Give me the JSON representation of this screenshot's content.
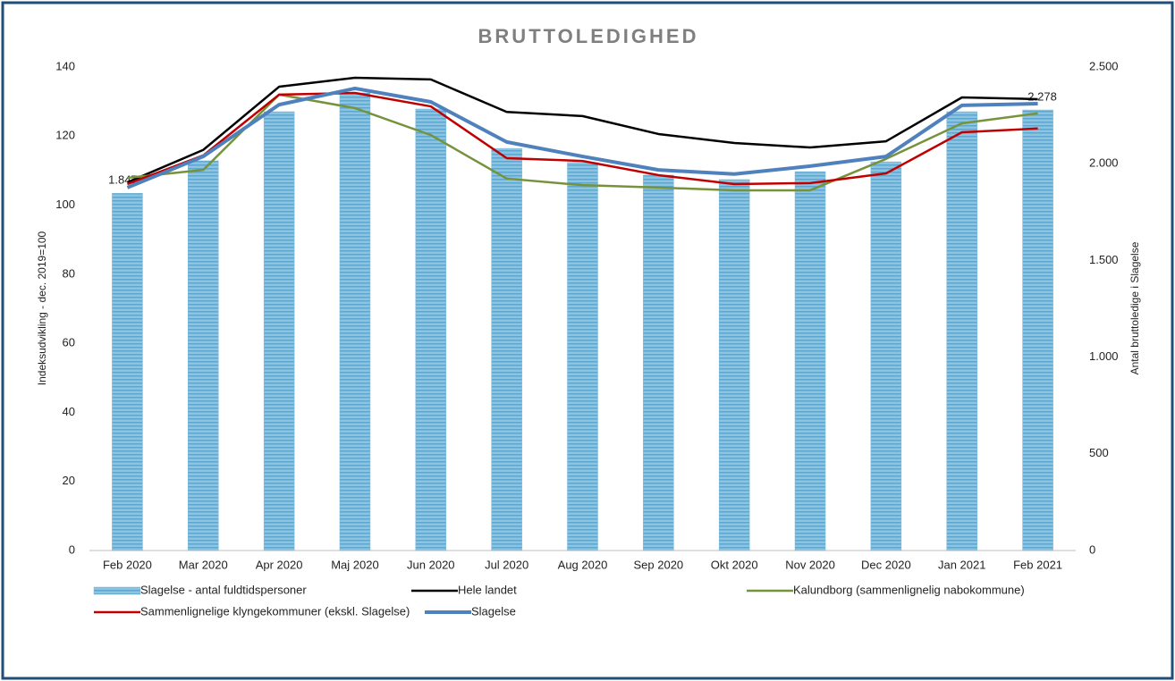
{
  "chart_data": {
    "type": "bar_line",
    "title": "BRUTTOLEDIGHED",
    "y_label": "Indeksudvikling - dec. 2019=100",
    "y2_label": "Antal bruttoledige i Slagelse",
    "categories": [
      "Feb 2020",
      "Mar 2020",
      "Apr 2020",
      "Maj 2020",
      "Jun 2020",
      "Jul 2020",
      "Aug 2020",
      "Sep 2020",
      "Okt 2020",
      "Nov 2020",
      "Dec 2020",
      "Jan 2021",
      "Feb 2021"
    ],
    "ylim": [
      0,
      140
    ],
    "yticks": [
      0,
      20,
      40,
      60,
      80,
      100,
      120,
      140
    ],
    "y2lim": [
      0,
      2500
    ],
    "y2ticks": [
      0,
      500,
      {
        "value": 1000,
        "label": "1.000"
      },
      {
        "value": 1500,
        "label": "1.500"
      },
      {
        "value": 2000,
        "label": "2.000"
      },
      {
        "value": 2500,
        "label": "2.500"
      }
    ],
    "series": [
      {
        "name": "Slagelse - antal fuldtidspersoner",
        "type": "bar",
        "axis": "y2",
        "color": "#7ab8d9",
        "values": [
          1847,
          2015,
          2269,
          2366,
          2283,
          2079,
          2006,
          1941,
          1918,
          1959,
          2010,
          2269,
          2278
        ],
        "value_labels": [
          "1.847",
          null,
          null,
          null,
          null,
          null,
          null,
          null,
          null,
          null,
          null,
          null,
          "2.278"
        ]
      },
      {
        "name": "Hele landet",
        "type": "line",
        "color": "#000000",
        "width": 2.5,
        "values": [
          106.6,
          116,
          134.3,
          136.9,
          136.4,
          127,
          125.8,
          120.6,
          118,
          116.7,
          118.5,
          131.2,
          130.7
        ]
      },
      {
        "name": "Kalundborg (sammenlignelig nabokommune)",
        "type": "line",
        "color": "#76933c",
        "width": 2.5,
        "values": [
          107.9,
          110.2,
          132,
          128.1,
          120.3,
          107.7,
          105.8,
          105.1,
          104.3,
          104.3,
          113.4,
          123.7,
          126.6
        ]
      },
      {
        "name": "Sammenlignelige klyngekommuner (ekskl. Slagelse)",
        "type": "line",
        "color": "#c00000",
        "width": 2.5,
        "values": [
          106.1,
          114.4,
          132,
          132.5,
          128.6,
          113.6,
          112.8,
          108.7,
          106.1,
          106.4,
          109.2,
          121.1,
          122.2
        ]
      },
      {
        "name": "Slagelse",
        "type": "line",
        "color": "#4f81bd",
        "width": 4,
        "values": [
          105.1,
          114.1,
          129.1,
          133.8,
          129.9,
          118.3,
          114.1,
          110.2,
          109,
          111.3,
          114.1,
          128.9,
          129.4
        ]
      }
    ]
  }
}
